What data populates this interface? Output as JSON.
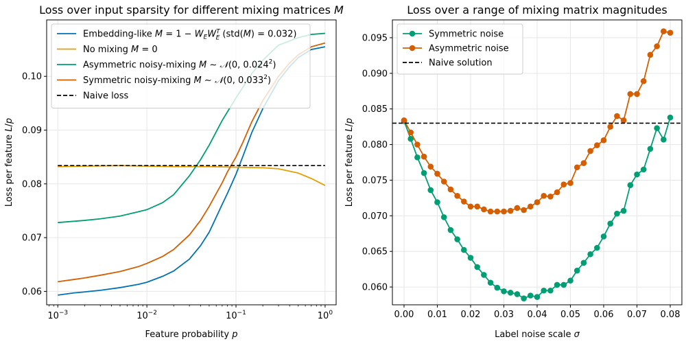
{
  "chart_data": [
    {
      "type": "line",
      "title": "Loss over input sparsity for different mixing matrices M",
      "xlabel": "Feature probability p",
      "ylabel": "Loss per feature L/p",
      "xscale": "log",
      "xlim": [
        0.00075,
        1.33
      ],
      "ylim": [
        0.0575,
        0.1105
      ],
      "grid": true,
      "legend_position": "top-left",
      "xticks": [
        {
          "value": 0.001,
          "base": "10",
          "exp": "−3"
        },
        {
          "value": 0.01,
          "base": "10",
          "exp": "−2"
        },
        {
          "value": 0.1,
          "base": "10",
          "exp": "−1"
        },
        {
          "value": 1,
          "base": "10",
          "exp": "0"
        }
      ],
      "yticks": [
        {
          "value": 0.06,
          "label": "0.06"
        },
        {
          "value": 0.07,
          "label": "0.07"
        },
        {
          "value": 0.08,
          "label": "0.08"
        },
        {
          "value": 0.09,
          "label": "0.09"
        },
        {
          "value": 0.1,
          "label": "0.10"
        }
      ],
      "series": [
        {
          "name": "Embedding-like M = 1 − W_E W_E^T (std(M) = 0.032)",
          "color": "#0072b2",
          "style": "solid",
          "points": [
            [
              0.001,
              0.0593
            ],
            [
              0.0015,
              0.0597
            ],
            [
              0.002,
              0.0599
            ],
            [
              0.003,
              0.0602
            ],
            [
              0.005,
              0.0607
            ],
            [
              0.008,
              0.0613
            ],
            [
              0.01,
              0.0617
            ],
            [
              0.015,
              0.0628
            ],
            [
              0.02,
              0.0638
            ],
            [
              0.03,
              0.066
            ],
            [
              0.04,
              0.0685
            ],
            [
              0.05,
              0.071
            ],
            [
              0.06,
              0.0738
            ],
            [
              0.07,
              0.0762
            ],
            [
              0.08,
              0.0782
            ],
            [
              0.1,
              0.0818
            ],
            [
              0.12,
              0.0852
            ],
            [
              0.15,
              0.0895
            ],
            [
              0.2,
              0.094
            ],
            [
              0.3,
              0.0992
            ],
            [
              0.4,
              0.1018
            ],
            [
              0.5,
              0.1035
            ],
            [
              0.7,
              0.105
            ],
            [
              1.0,
              0.1055
            ]
          ]
        },
        {
          "name": "No mixing M = 0",
          "color": "#e69f00",
          "style": "solid",
          "points": [
            [
              0.001,
              0.0832
            ],
            [
              0.002,
              0.0833
            ],
            [
              0.005,
              0.0834
            ],
            [
              0.01,
              0.0833
            ],
            [
              0.02,
              0.0832
            ],
            [
              0.05,
              0.0832
            ],
            [
              0.1,
              0.0831
            ],
            [
              0.2,
              0.083
            ],
            [
              0.3,
              0.0828
            ],
            [
              0.5,
              0.082
            ],
            [
              0.7,
              0.081
            ],
            [
              1.0,
              0.0797
            ]
          ]
        },
        {
          "name": "Asymmetric noisy-mixing M ∼ 𝒩(0, 0.024²)",
          "color": "#009e73",
          "style": "solid",
          "points": [
            [
              0.001,
              0.0728
            ],
            [
              0.002,
              0.0732
            ],
            [
              0.003,
              0.0735
            ],
            [
              0.005,
              0.074
            ],
            [
              0.008,
              0.0748
            ],
            [
              0.01,
              0.0752
            ],
            [
              0.015,
              0.0765
            ],
            [
              0.02,
              0.078
            ],
            [
              0.03,
              0.0815
            ],
            [
              0.04,
              0.0845
            ],
            [
              0.05,
              0.0872
            ],
            [
              0.07,
              0.0918
            ],
            [
              0.1,
              0.096
            ],
            [
              0.15,
              0.1005
            ],
            [
              0.2,
              0.103
            ],
            [
              0.3,
              0.1058
            ],
            [
              0.5,
              0.1072
            ],
            [
              0.7,
              0.1078
            ],
            [
              1.0,
              0.108
            ]
          ]
        },
        {
          "name": "Symmetric noisy-mixing M ∼ 𝒩(0, 0.033²)",
          "color": "#d55e00",
          "style": "solid",
          "points": [
            [
              0.001,
              0.0618
            ],
            [
              0.0015,
              0.0622
            ],
            [
              0.002,
              0.0625
            ],
            [
              0.003,
              0.063
            ],
            [
              0.005,
              0.0637
            ],
            [
              0.008,
              0.0646
            ],
            [
              0.01,
              0.0652
            ],
            [
              0.015,
              0.0665
            ],
            [
              0.02,
              0.0678
            ],
            [
              0.03,
              0.0705
            ],
            [
              0.04,
              0.0732
            ],
            [
              0.05,
              0.0758
            ],
            [
              0.06,
              0.0782
            ],
            [
              0.07,
              0.0802
            ],
            [
              0.08,
              0.0822
            ],
            [
              0.1,
              0.085
            ],
            [
              0.12,
              0.0878
            ],
            [
              0.15,
              0.0915
            ],
            [
              0.2,
              0.0955
            ],
            [
              0.3,
              0.1
            ],
            [
              0.4,
              0.1025
            ],
            [
              0.5,
              0.104
            ],
            [
              0.7,
              0.1055
            ],
            [
              1.0,
              0.1062
            ]
          ]
        },
        {
          "name": "Naive loss",
          "color": "#000000",
          "style": "dashed",
          "points": [
            [
              0.001,
              0.0834
            ],
            [
              1.0,
              0.0834
            ]
          ]
        }
      ]
    },
    {
      "type": "line",
      "title": "Loss over a range of mixing matrix magnitudes",
      "xlabel": "Label noise scale σ",
      "ylabel": "Loss per feature L/p",
      "xscale": "linear",
      "xlim": [
        -0.0035,
        0.0835
      ],
      "ylim": [
        0.0575,
        0.0975
      ],
      "grid": true,
      "legend_position": "top-left",
      "xticks": [
        {
          "value": 0.0,
          "label": "0.00"
        },
        {
          "value": 0.01,
          "label": "0.01"
        },
        {
          "value": 0.02,
          "label": "0.02"
        },
        {
          "value": 0.03,
          "label": "0.03"
        },
        {
          "value": 0.04,
          "label": "0.04"
        },
        {
          "value": 0.05,
          "label": "0.05"
        },
        {
          "value": 0.06,
          "label": "0.06"
        },
        {
          "value": 0.07,
          "label": "0.07"
        },
        {
          "value": 0.08,
          "label": "0.08"
        }
      ],
      "yticks": [
        {
          "value": 0.06,
          "label": "0.060"
        },
        {
          "value": 0.065,
          "label": "0.065"
        },
        {
          "value": 0.07,
          "label": "0.070"
        },
        {
          "value": 0.075,
          "label": "0.075"
        },
        {
          "value": 0.08,
          "label": "0.080"
        },
        {
          "value": 0.085,
          "label": "0.085"
        },
        {
          "value": 0.09,
          "label": "0.090"
        },
        {
          "value": 0.095,
          "label": "0.095"
        }
      ],
      "series": [
        {
          "name": "Symmetric noise",
          "color": "#009e73",
          "style": "solid-markers",
          "x": [
            0.0,
            0.002,
            0.004,
            0.006,
            0.008,
            0.01,
            0.012,
            0.014,
            0.016,
            0.018,
            0.02,
            0.022,
            0.024,
            0.026,
            0.028,
            0.03,
            0.032,
            0.034,
            0.036,
            0.038,
            0.04,
            0.042,
            0.044,
            0.046,
            0.048,
            0.05,
            0.052,
            0.054,
            0.056,
            0.058,
            0.06,
            0.062,
            0.064,
            0.066,
            0.068,
            0.07,
            0.072,
            0.074,
            0.076,
            0.078,
            0.08
          ],
          "y": [
            0.0833,
            0.0808,
            0.0782,
            0.076,
            0.0736,
            0.0719,
            0.0698,
            0.068,
            0.0667,
            0.0652,
            0.0641,
            0.0628,
            0.0617,
            0.0606,
            0.0599,
            0.0594,
            0.0592,
            0.059,
            0.0584,
            0.0588,
            0.0586,
            0.0595,
            0.0595,
            0.0603,
            0.0603,
            0.0609,
            0.0623,
            0.0634,
            0.0646,
            0.0655,
            0.0671,
            0.0689,
            0.0703,
            0.0707,
            0.0743,
            0.0758,
            0.0765,
            0.0794,
            0.0823,
            0.0807,
            0.0838
          ]
        },
        {
          "name": "Asymmetric noise",
          "color": "#d55e00",
          "style": "solid-markers",
          "x": [
            0.0,
            0.002,
            0.004,
            0.006,
            0.008,
            0.01,
            0.012,
            0.014,
            0.016,
            0.018,
            0.02,
            0.022,
            0.024,
            0.026,
            0.028,
            0.03,
            0.032,
            0.034,
            0.036,
            0.038,
            0.04,
            0.042,
            0.044,
            0.046,
            0.048,
            0.05,
            0.052,
            0.054,
            0.056,
            0.058,
            0.06,
            0.062,
            0.064,
            0.066,
            0.068,
            0.07,
            0.072,
            0.074,
            0.076,
            0.078,
            0.08
          ],
          "y": [
            0.0834,
            0.0817,
            0.08,
            0.0783,
            0.0769,
            0.0759,
            0.0748,
            0.0737,
            0.0728,
            0.072,
            0.0713,
            0.0713,
            0.0709,
            0.0706,
            0.0706,
            0.0706,
            0.0707,
            0.0711,
            0.0708,
            0.0713,
            0.0719,
            0.0728,
            0.0727,
            0.0733,
            0.0744,
            0.0746,
            0.0768,
            0.0774,
            0.0791,
            0.0799,
            0.0806,
            0.0825,
            0.084,
            0.0834,
            0.0871,
            0.0871,
            0.0889,
            0.0926,
            0.0938,
            0.0959,
            0.0957
          ]
        },
        {
          "name": "Naive solution",
          "color": "#000000",
          "style": "dashed",
          "x": [
            -0.0035,
            0.0835
          ],
          "y": [
            0.083,
            0.083
          ]
        }
      ]
    }
  ]
}
